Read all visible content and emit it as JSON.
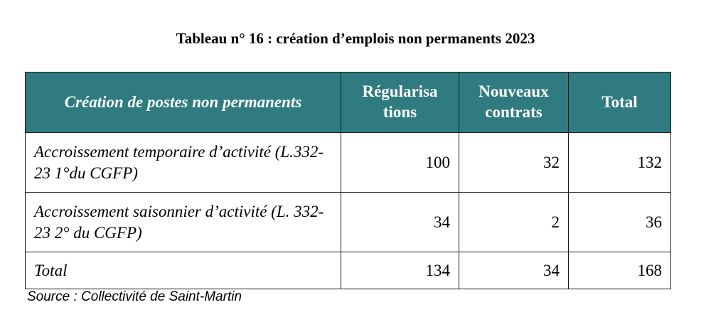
{
  "title": "Tableau n° 16 : création d’emplois non permanents 2023",
  "table": {
    "headers": [
      "Création de postes non permanents",
      "Régularisa tions",
      "Nouveaux contrats",
      "Total"
    ],
    "rows": [
      {
        "label": "Accroissement temporaire d’activité (L.332-23 1°du CGFP)",
        "regularisations": "100",
        "nouveaux_contrats": "32",
        "total": "132"
      },
      {
        "label": "Accroissement saisonnier d’activité (L. 332-23 2° du CGFP)",
        "regularisations": "34",
        "nouveaux_contrats": "2",
        "total": "36"
      },
      {
        "label": "Total",
        "regularisations": "134",
        "nouveaux_contrats": "34",
        "total": "168"
      }
    ],
    "header_color": "#2f7b80"
  },
  "source": "Source : Collectivité de Saint-Martin"
}
